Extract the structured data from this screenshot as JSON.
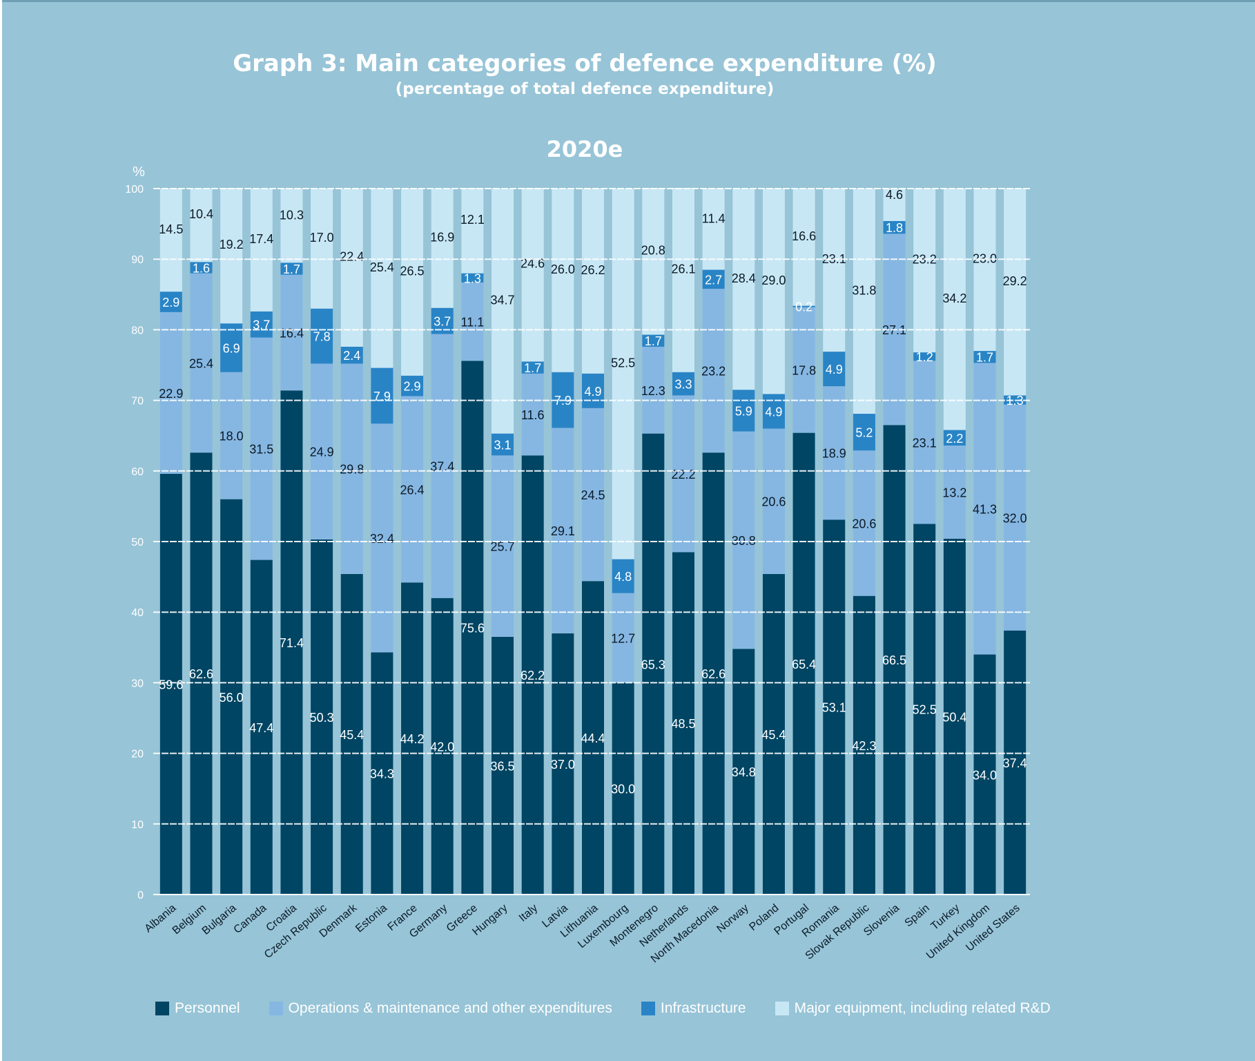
{
  "title": "Graph 3: Main categories of defence expenditure (%)",
  "subtitle": "(percentage of total defence expenditure)",
  "year_label": "2020e",
  "colors": {
    "Personnel": "#004563",
    "Operations & maintenance and other expenditures": "#86b7e2",
    "Infrastructure": "#2984c6",
    "Major equipment, including related R&D": "#c8e7f5"
  },
  "chart_data": {
    "type": "bar",
    "stacked": true,
    "title": "Graph 3: Main categories of defence expenditure (%)",
    "subtitle": "(percentage of total defence expenditure)",
    "year": "2020e",
    "ylabel": "%",
    "ylim": [
      0,
      100
    ],
    "yticks": [
      "0",
      "10",
      "20",
      "30",
      "40",
      "50",
      "60",
      "70",
      "80",
      "90",
      "100"
    ],
    "grid": true,
    "legend_position": "bottom",
    "categories": [
      "Albania",
      "Belgium",
      "Bulgaria",
      "Canada",
      "Croatia",
      "Czech Republic",
      "Denmark",
      "Estonia",
      "France",
      "Germany",
      "Greece",
      "Hungary",
      "Italy",
      "Latvia",
      "Lithuania",
      "Luxembourg",
      "Montenegro",
      "Netherlands",
      "North Macedonia",
      "Norway",
      "Poland",
      "Portugal",
      "Romania",
      "Slovak Republic",
      "Slovenia",
      "Spain",
      "Turkey",
      "United Kingdom",
      "United States"
    ],
    "series": [
      {
        "name": "Personnel",
        "values": [
          59.6,
          62.6,
          56.0,
          47.4,
          71.4,
          50.3,
          45.4,
          34.3,
          44.2,
          42.0,
          75.6,
          36.5,
          62.2,
          37.0,
          44.4,
          30.0,
          65.3,
          48.5,
          62.6,
          34.8,
          45.4,
          65.4,
          53.1,
          42.3,
          66.5,
          52.5,
          50.4,
          34.0,
          37.4
        ],
        "labels": [
          "59.6",
          "62.6",
          "56.0",
          "47.4",
          "71.4",
          "50.3",
          "45.4",
          "34.3",
          "44.2",
          "42.0",
          "75.6",
          "36.5",
          "62.2",
          "37.0",
          "44.4",
          "30.0",
          "65.3",
          "48.5",
          "62.6",
          "34.8",
          "45.4",
          "65.4",
          "53.1",
          "42.3",
          "66.5",
          "52.5",
          "50.4",
          "34.0",
          "37.4"
        ]
      },
      {
        "name": "Operations & maintenance and other expenditures",
        "values": [
          22.9,
          25.4,
          18.0,
          31.5,
          16.4,
          24.9,
          29.8,
          32.4,
          26.4,
          37.4,
          11.1,
          25.7,
          11.6,
          29.1,
          24.5,
          12.7,
          12.3,
          22.2,
          23.2,
          30.8,
          20.6,
          17.8,
          18.9,
          20.6,
          27.1,
          23.1,
          13.2,
          41.3,
          32.0
        ],
        "labels": [
          "22.9",
          "25.4",
          "18.0",
          "31.5",
          "16.4",
          "24.9",
          "29.8",
          "32.4",
          "26.4",
          "37.4",
          "11.1",
          "25.7",
          "11.6",
          "29.1",
          "24.5",
          "12.7",
          "12.3",
          "22.2",
          "23.2",
          "30.8",
          "20.6",
          "17.8",
          "18.9",
          "20.6",
          "27.1",
          "23.1",
          "13.2",
          "41.3",
          "32.0"
        ]
      },
      {
        "name": "Infrastructure",
        "values": [
          2.9,
          1.6,
          6.9,
          3.7,
          1.7,
          7.8,
          2.4,
          7.9,
          2.9,
          3.7,
          1.3,
          3.1,
          1.7,
          7.9,
          4.9,
          4.8,
          1.7,
          3.3,
          2.7,
          5.9,
          4.9,
          0.2,
          4.9,
          5.2,
          1.8,
          1.2,
          2.2,
          1.7,
          1.3
        ],
        "labels": [
          "2.9",
          "1.6",
          "6.9",
          "3.7",
          "1.7",
          "7.8",
          "2.4",
          "7.9",
          "2.9",
          "3.7",
          "1.3",
          "3.1",
          "1.7",
          "7.9",
          "4.9",
          "4.8",
          "1.7",
          "3.3",
          "2.7",
          "5.9",
          "4.9",
          "0.2",
          "4.9",
          "5.2",
          "1.8",
          "1.2",
          "2.2",
          "1.7",
          "1.3"
        ]
      },
      {
        "name": "Major equipment, including related R&D",
        "values": [
          14.5,
          10.4,
          19.2,
          17.4,
          10.3,
          17.0,
          22.4,
          25.4,
          26.5,
          16.9,
          12.1,
          34.7,
          24.6,
          26.0,
          26.2,
          52.5,
          20.8,
          26.1,
          11.4,
          28.4,
          29.0,
          16.6,
          23.1,
          31.8,
          4.6,
          23.2,
          34.2,
          23.0,
          29.2
        ],
        "labels": [
          "14.5",
          "10.4",
          "19.2",
          "17.4",
          "10.3",
          "17.0",
          "22.4",
          "25.4",
          "26.5",
          "16.9",
          "12.1",
          "34.7",
          "24.6",
          "26.0",
          "26.2",
          "52.5",
          "20.8",
          "26.1",
          "11.4",
          "28.4",
          "29.0",
          "16.6",
          "23.1",
          "31.8",
          "4.6",
          "23.2",
          "34.2",
          "23.0",
          "29.2"
        ]
      }
    ]
  }
}
